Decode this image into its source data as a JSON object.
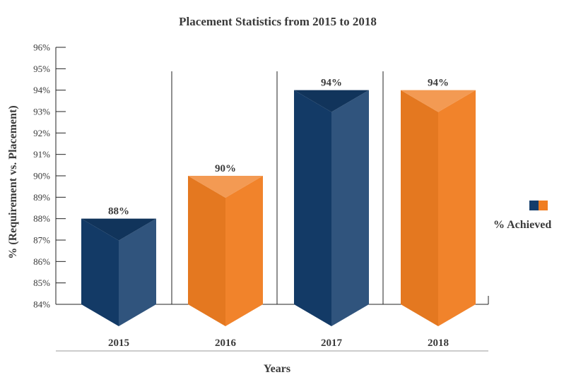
{
  "chart_data": {
    "type": "bar",
    "title": "Placement Statistics from 2015 to 2018",
    "xlabel": "Years",
    "ylabel": "% (Requirement vs. Placement)",
    "categories": [
      "2015",
      "2016",
      "2017",
      "2018"
    ],
    "series": [
      {
        "name": "% Achieved",
        "values": [
          88,
          90,
          94,
          94
        ]
      }
    ],
    "data_labels": [
      "88%",
      "90%",
      "94%",
      "94%"
    ],
    "yticks": [
      "84%",
      "85%",
      "86%",
      "87%",
      "88%",
      "89%",
      "90%",
      "91%",
      "92%",
      "93%",
      "94%",
      "95%",
      "96%"
    ],
    "ylim": [
      84,
      96
    ],
    "bar_colors": [
      "#143d6b",
      "#f07e22",
      "#143d6b",
      "#f07e22"
    ],
    "legend_colors": [
      "#143d6b",
      "#f07e22"
    ],
    "legend_position": "right"
  }
}
